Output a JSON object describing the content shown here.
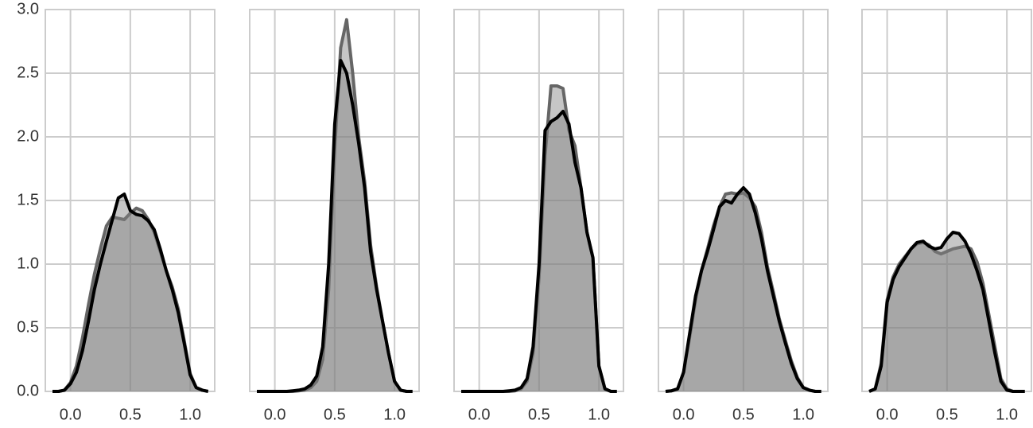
{
  "chart_data": [
    {
      "type": "area",
      "xlim": [
        -0.21,
        1.205
      ],
      "ylim": [
        0,
        3
      ],
      "xticks": [
        {
          "value": 0,
          "label": "0.0"
        },
        {
          "value": 0.5,
          "label": "0.5"
        },
        {
          "value": 1,
          "label": "1.0"
        }
      ],
      "yticks": [
        {
          "value": 0,
          "label": "0.0"
        },
        {
          "value": 0.5,
          "label": "0.5"
        },
        {
          "value": 1,
          "label": "1.0"
        },
        {
          "value": 1.5,
          "label": "1.5"
        },
        {
          "value": 2,
          "label": "2.0"
        },
        {
          "value": 2.5,
          "label": "2.5"
        },
        {
          "value": 3,
          "label": "3.0"
        }
      ],
      "y_tick_labels": true,
      "grid": true,
      "x": [
        -0.15,
        -0.1,
        -0.05,
        0,
        0.05,
        0.1,
        0.15,
        0.2,
        0.25,
        0.3,
        0.35,
        0.4,
        0.45,
        0.5,
        0.55,
        0.6,
        0.65,
        0.7,
        0.75,
        0.8,
        0.85,
        0.9,
        0.95,
        1.0,
        1.05,
        1.1,
        1.15
      ],
      "series": [
        {
          "color": "#666666",
          "values": [
            0,
            0,
            0.01,
            0.07,
            0.2,
            0.42,
            0.68,
            0.92,
            1.12,
            1.3,
            1.37,
            1.36,
            1.35,
            1.4,
            1.44,
            1.42,
            1.35,
            1.25,
            1.1,
            0.95,
            0.82,
            0.65,
            0.4,
            0.14,
            0.03,
            0.01,
            0
          ]
        },
        {
          "color": "#000000",
          "values": [
            0,
            0,
            0.01,
            0.06,
            0.15,
            0.32,
            0.55,
            0.8,
            1.0,
            1.18,
            1.35,
            1.52,
            1.55,
            1.42,
            1.39,
            1.38,
            1.34,
            1.27,
            1.12,
            0.95,
            0.8,
            0.62,
            0.38,
            0.13,
            0.03,
            0.01,
            0
          ]
        }
      ]
    },
    {
      "type": "area",
      "xlim": [
        -0.21,
        1.205
      ],
      "ylim": [
        0,
        3
      ],
      "xticks": [
        {
          "value": 0,
          "label": "0.0"
        },
        {
          "value": 0.5,
          "label": "0.5"
        },
        {
          "value": 1,
          "label": "1.0"
        }
      ],
      "yticks": [
        0,
        0.5,
        1,
        1.5,
        2,
        2.5,
        3
      ],
      "y_tick_labels": false,
      "grid": true,
      "x": [
        -0.15,
        -0.1,
        -0.05,
        0,
        0.05,
        0.1,
        0.15,
        0.2,
        0.25,
        0.3,
        0.35,
        0.4,
        0.45,
        0.5,
        0.55,
        0.6,
        0.65,
        0.7,
        0.75,
        0.8,
        0.85,
        0.9,
        0.95,
        1.0,
        1.05,
        1.1,
        1.15
      ],
      "series": [
        {
          "color": "#666666",
          "values": [
            0,
            0,
            0,
            0,
            0,
            0,
            0,
            0.005,
            0.01,
            0.03,
            0.08,
            0.25,
            0.8,
            1.9,
            2.7,
            2.92,
            2.5,
            2.0,
            1.65,
            1.15,
            0.82,
            0.55,
            0.3,
            0.08,
            0.01,
            0,
            0
          ]
        },
        {
          "color": "#000000",
          "values": [
            0,
            0,
            0,
            0,
            0,
            0,
            0.005,
            0.01,
            0.02,
            0.05,
            0.12,
            0.35,
            1.0,
            2.1,
            2.6,
            2.5,
            2.25,
            1.95,
            1.6,
            1.1,
            0.8,
            0.55,
            0.3,
            0.08,
            0.01,
            0,
            0
          ]
        }
      ]
    },
    {
      "type": "area",
      "xlim": [
        -0.21,
        1.205
      ],
      "ylim": [
        0,
        3
      ],
      "xticks": [
        {
          "value": 0,
          "label": "0.0"
        },
        {
          "value": 0.5,
          "label": "0.5"
        },
        {
          "value": 1,
          "label": "1.0"
        }
      ],
      "yticks": [
        0,
        0.5,
        1,
        1.5,
        2,
        2.5,
        3
      ],
      "y_tick_labels": false,
      "grid": true,
      "x": [
        -0.15,
        -0.1,
        -0.05,
        0,
        0.05,
        0.1,
        0.15,
        0.2,
        0.25,
        0.3,
        0.35,
        0.4,
        0.45,
        0.5,
        0.55,
        0.6,
        0.65,
        0.7,
        0.75,
        0.8,
        0.85,
        0.9,
        0.95,
        1.0,
        1.05,
        1.1,
        1.15
      ],
      "series": [
        {
          "color": "#666666",
          "values": [
            0,
            0,
            0,
            0,
            0,
            0,
            0,
            0,
            0,
            0.005,
            0.02,
            0.08,
            0.3,
            0.9,
            1.85,
            2.4,
            2.4,
            2.38,
            2.05,
            1.93,
            1.6,
            1.25,
            1.05,
            0.2,
            0.02,
            0,
            0
          ]
        },
        {
          "color": "#000000",
          "values": [
            0,
            0,
            0,
            0,
            0,
            0,
            0,
            0,
            0.005,
            0.01,
            0.03,
            0.1,
            0.35,
            1.0,
            2.05,
            2.12,
            2.15,
            2.2,
            2.1,
            1.8,
            1.6,
            1.25,
            1.05,
            0.2,
            0.02,
            0,
            0
          ]
        }
      ]
    },
    {
      "type": "area",
      "xlim": [
        -0.21,
        1.205
      ],
      "ylim": [
        0,
        3
      ],
      "xticks": [
        {
          "value": 0,
          "label": "0.0"
        },
        {
          "value": 0.5,
          "label": "0.5"
        },
        {
          "value": 1,
          "label": "1.0"
        }
      ],
      "yticks": [
        0,
        0.5,
        1,
        1.5,
        2,
        2.5,
        3
      ],
      "y_tick_labels": false,
      "grid": true,
      "x": [
        -0.15,
        -0.1,
        -0.05,
        0,
        0.05,
        0.1,
        0.15,
        0.2,
        0.25,
        0.3,
        0.35,
        0.4,
        0.45,
        0.5,
        0.55,
        0.6,
        0.65,
        0.7,
        0.75,
        0.8,
        0.85,
        0.9,
        0.95,
        1.0,
        1.05,
        1.1,
        1.15
      ],
      "series": [
        {
          "color": "#666666",
          "values": [
            0,
            0.005,
            0.02,
            0.15,
            0.42,
            0.72,
            0.95,
            1.12,
            1.3,
            1.45,
            1.55,
            1.56,
            1.55,
            1.56,
            1.52,
            1.45,
            1.25,
            0.98,
            0.78,
            0.57,
            0.4,
            0.24,
            0.11,
            0.03,
            0.01,
            0,
            0
          ]
        },
        {
          "color": "#000000",
          "values": [
            0,
            0.005,
            0.02,
            0.15,
            0.45,
            0.75,
            0.95,
            1.1,
            1.27,
            1.45,
            1.5,
            1.48,
            1.55,
            1.6,
            1.55,
            1.4,
            1.2,
            0.95,
            0.75,
            0.55,
            0.38,
            0.22,
            0.1,
            0.03,
            0.01,
            0,
            0
          ]
        }
      ]
    },
    {
      "type": "area",
      "xlim": [
        -0.21,
        1.205
      ],
      "ylim": [
        0,
        3
      ],
      "xticks": [
        {
          "value": 0,
          "label": "0.0"
        },
        {
          "value": 0.5,
          "label": "0.5"
        },
        {
          "value": 1,
          "label": "1.0"
        }
      ],
      "yticks": [
        0,
        0.5,
        1,
        1.5,
        2,
        2.5,
        3
      ],
      "y_tick_labels": false,
      "grid": true,
      "x": [
        -0.15,
        -0.1,
        -0.05,
        0,
        0.05,
        0.1,
        0.15,
        0.2,
        0.25,
        0.3,
        0.35,
        0.4,
        0.45,
        0.5,
        0.55,
        0.6,
        0.65,
        0.7,
        0.75,
        0.8,
        0.85,
        0.9,
        0.95,
        1.0,
        1.05,
        1.1,
        1.15
      ],
      "series": [
        {
          "color": "#666666",
          "values": [
            0,
            0.02,
            0.22,
            0.72,
            0.9,
            1.0,
            1.06,
            1.12,
            1.16,
            1.17,
            1.15,
            1.1,
            1.08,
            1.1,
            1.12,
            1.13,
            1.14,
            1.12,
            1.02,
            0.85,
            0.6,
            0.35,
            0.1,
            0.02,
            0,
            0,
            0
          ]
        },
        {
          "color": "#000000",
          "values": [
            0,
            0.02,
            0.2,
            0.7,
            0.88,
            0.98,
            1.05,
            1.12,
            1.17,
            1.18,
            1.14,
            1.12,
            1.13,
            1.2,
            1.25,
            1.24,
            1.18,
            1.08,
            0.95,
            0.8,
            0.55,
            0.3,
            0.08,
            0.01,
            0,
            0,
            0
          ]
        }
      ]
    }
  ]
}
